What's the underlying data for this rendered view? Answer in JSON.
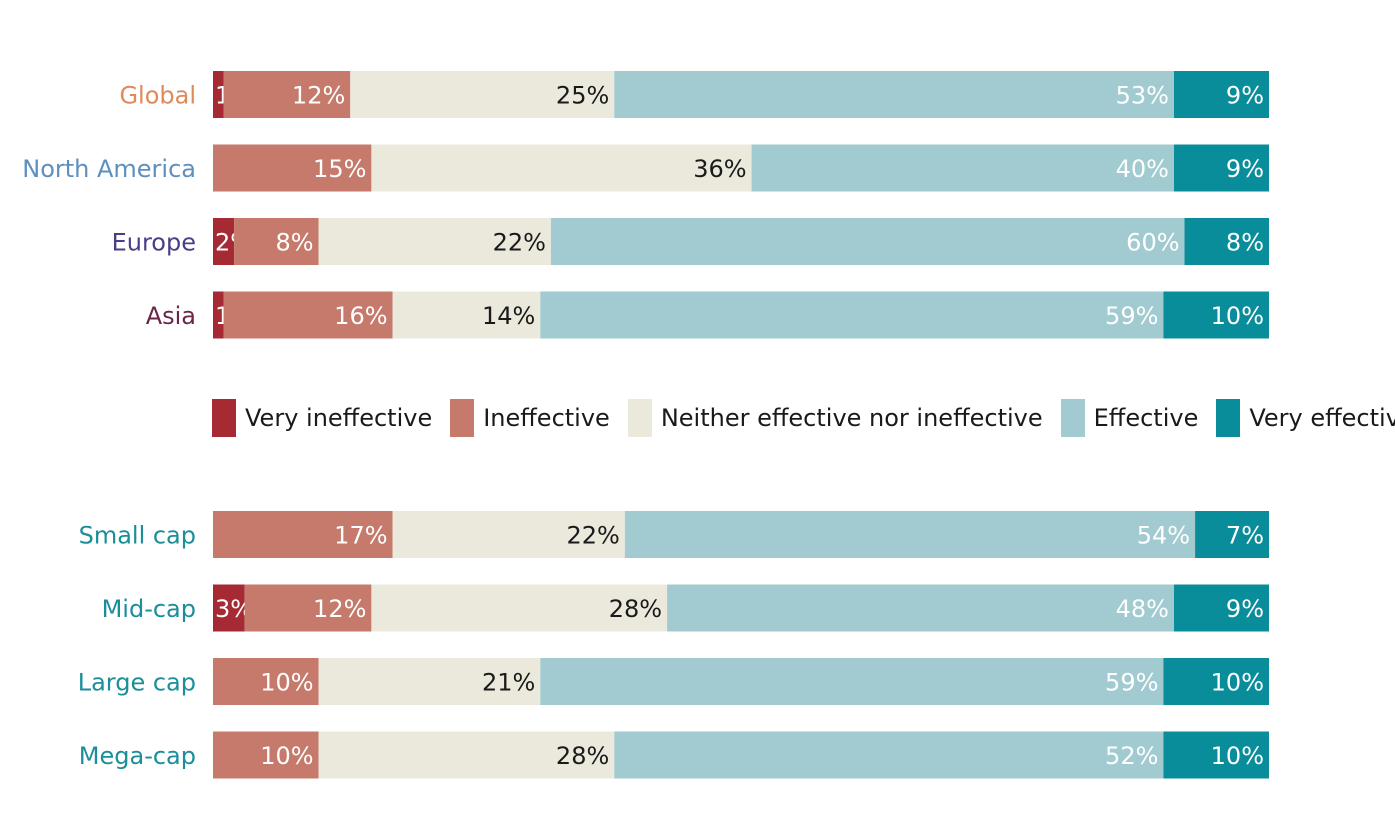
{
  "categories": [
    {
      "key": "very_ineffective",
      "label": "Very ineffective",
      "color": "#a52a33",
      "label_color": "#ffffff"
    },
    {
      "key": "ineffective",
      "label": "Ineffective",
      "color": "#c57a6b",
      "label_color": "#ffffff"
    },
    {
      "key": "neither",
      "label": "Neither effective nor ineffective",
      "color": "#ebe8dc",
      "label_color": "#1a1a1a"
    },
    {
      "key": "effective",
      "label": "Effective",
      "color": "#a1cbd1",
      "label_color": "#ffffff"
    },
    {
      "key": "very_effective",
      "label": "Very effective",
      "color": "#0a8d9a",
      "label_color": "#ffffff"
    }
  ],
  "chart_data": [
    {
      "type": "bar",
      "orientation": "horizontal",
      "stacked": true,
      "unit": "%",
      "rows": [
        {
          "label": "Global",
          "label_color": "#e08a5a",
          "values": [
            1,
            12,
            25,
            53,
            9
          ]
        },
        {
          "label": "North America",
          "label_color": "#5d8fbf",
          "values": [
            0,
            15,
            36,
            40,
            9
          ]
        },
        {
          "label": "Europe",
          "label_color": "#4a3f86",
          "values": [
            2,
            8,
            22,
            60,
            8
          ]
        },
        {
          "label": "Asia",
          "label_color": "#6a2548",
          "values": [
            1,
            16,
            14,
            59,
            10
          ]
        }
      ]
    },
    {
      "type": "bar",
      "orientation": "horizontal",
      "stacked": true,
      "unit": "%",
      "rows": [
        {
          "label": "Small cap",
          "label_color": "#1a8e99",
          "values": [
            0,
            17,
            22,
            54,
            7
          ]
        },
        {
          "label": "Mid-cap",
          "label_color": "#1a8e99",
          "values": [
            3,
            12,
            28,
            48,
            9
          ]
        },
        {
          "label": "Large cap",
          "label_color": "#1a8e99",
          "values": [
            0,
            10,
            21,
            59,
            10
          ]
        },
        {
          "label": "Mega-cap",
          "label_color": "#1a8e99",
          "values": [
            0,
            10,
            28,
            52,
            10
          ]
        }
      ]
    }
  ]
}
